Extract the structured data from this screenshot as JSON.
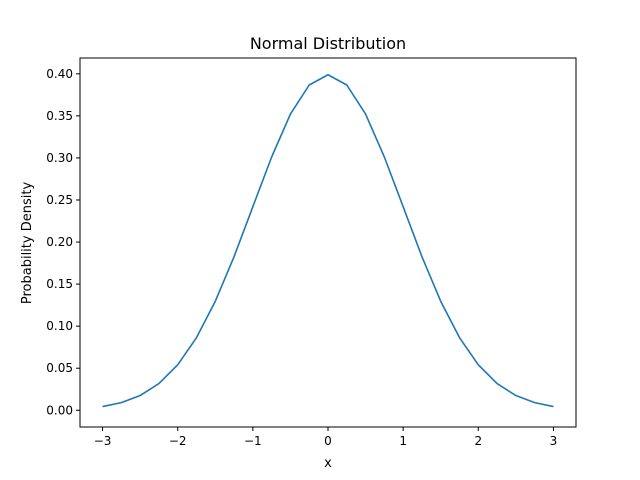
{
  "chart_data": {
    "type": "line",
    "title": "Normal Distribution",
    "xlabel": "x",
    "ylabel": "Probability Density",
    "xlim": [
      -3.3,
      3.3
    ],
    "ylim": [
      -0.0199,
      0.4188
    ],
    "xticks": [
      -3,
      -2,
      -1,
      0,
      1,
      2,
      3
    ],
    "xtick_labels": [
      "−3",
      "−2",
      "−1",
      "0",
      "1",
      "2",
      "3"
    ],
    "yticks": [
      0.0,
      0.05,
      0.1,
      0.15,
      0.2,
      0.25,
      0.3,
      0.35,
      0.4
    ],
    "ytick_labels": [
      "0.00",
      "0.05",
      "0.10",
      "0.15",
      "0.20",
      "0.25",
      "0.30",
      "0.35",
      "0.40"
    ],
    "grid": false,
    "series": [
      {
        "color": "#1f77b4",
        "x": [
          -3.0,
          -2.75,
          -2.5,
          -2.25,
          -2.0,
          -1.75,
          -1.5,
          -1.25,
          -1.0,
          -0.75,
          -0.5,
          -0.25,
          0.0,
          0.25,
          0.5,
          0.75,
          1.0,
          1.25,
          1.5,
          1.75,
          2.0,
          2.25,
          2.5,
          2.75,
          3.0
        ],
        "y": [
          0.0044,
          0.0091,
          0.0175,
          0.0317,
          0.054,
          0.0863,
          0.1295,
          0.1826,
          0.242,
          0.3011,
          0.3521,
          0.3867,
          0.3989,
          0.3867,
          0.3521,
          0.3011,
          0.242,
          0.1826,
          0.1295,
          0.0863,
          0.054,
          0.0317,
          0.0175,
          0.0091,
          0.0044
        ]
      }
    ]
  }
}
